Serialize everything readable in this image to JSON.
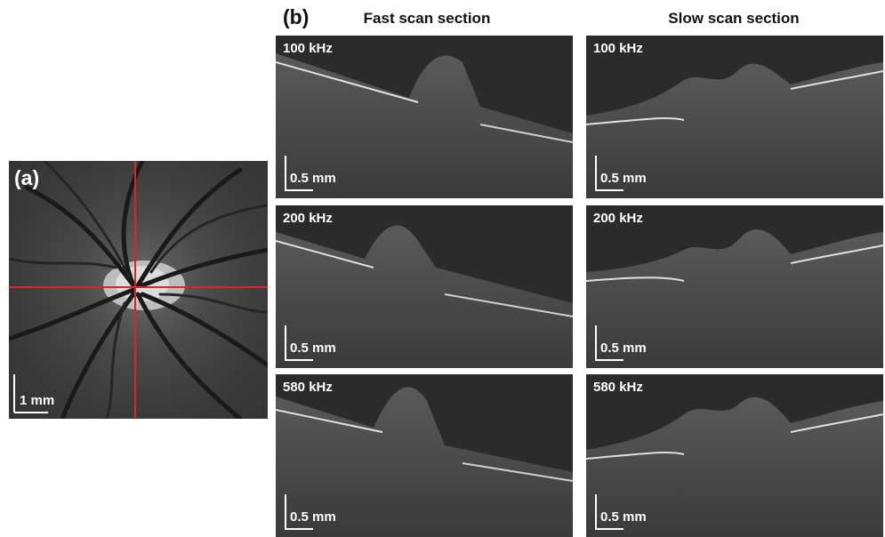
{
  "fundus": {
    "label": "(a)",
    "scale": "1 mm"
  },
  "octs": {
    "label": "(b)",
    "columns": [
      "Fast scan section",
      "Slow scan section"
    ],
    "rows": [
      "100 kHz",
      "200 kHz",
      "580 kHz"
    ],
    "scale": "0.5 mm"
  },
  "colors": {
    "crosshair": "#d9262b"
  }
}
